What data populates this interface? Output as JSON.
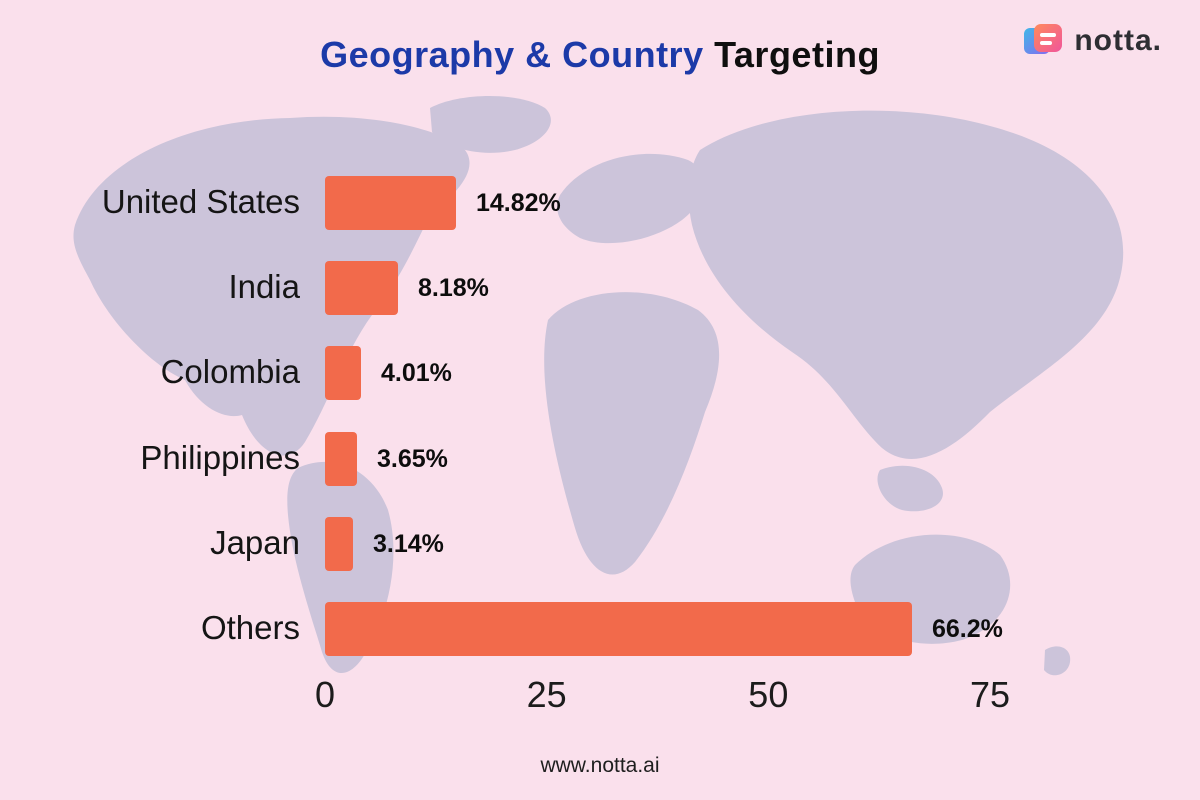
{
  "header": {
    "title_primary": "Geography & Country",
    "title_secondary": " Targeting",
    "brand": "notta."
  },
  "footer": {
    "url": "www.notta.ai"
  },
  "colors": {
    "background": "#FAE0EC",
    "map_silhouette": "#CCC4DA",
    "bar": "#F26A4B",
    "title_accent": "#1C3AA8"
  },
  "chart_data": {
    "type": "bar",
    "orientation": "horizontal",
    "title": "Geography & Country Targeting",
    "categories": [
      "United States",
      "India",
      "Colombia",
      "Philippines",
      "Japan",
      "Others"
    ],
    "values": [
      14.82,
      8.18,
      4.01,
      3.65,
      3.14,
      66.2
    ],
    "value_labels": [
      "14.82%",
      "8.18%",
      "4.01%",
      "3.65%",
      "3.14%",
      "66.2%"
    ],
    "x_ticks": [
      0,
      25,
      50,
      75
    ],
    "xlim": [
      0,
      75
    ],
    "grid": false,
    "legend": false
  }
}
